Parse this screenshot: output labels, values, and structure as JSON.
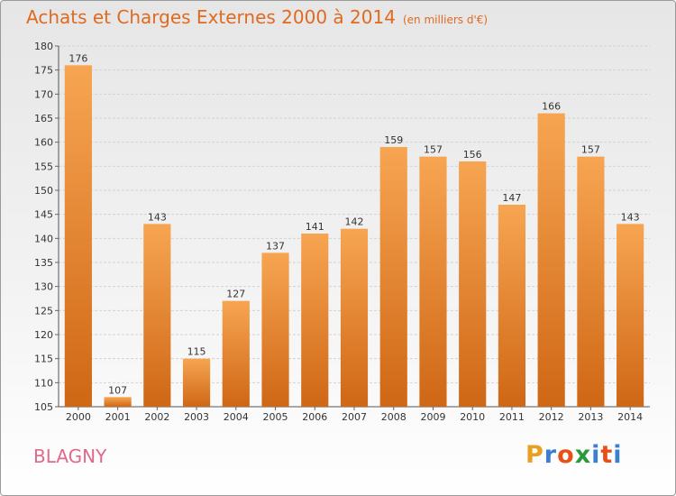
{
  "header": {
    "title": "Achats et Charges Externes 2000 à 2014",
    "unit": "(en milliers d'€)"
  },
  "footer": {
    "commune": "BLAGNY",
    "logo": [
      "P",
      "r",
      "o",
      "x",
      "i",
      "t",
      "i"
    ],
    "logo_colors": [
      "#e8a020",
      "#3a7fd0",
      "#e8501a",
      "#2a9a3a",
      "#3a7fd0",
      "#e8501a",
      "#3a7fd0"
    ]
  },
  "colors": {
    "bar_light": "#f7a552",
    "bar_dark": "#cf6715",
    "title": "#e06a20",
    "commune": "#e06a8a"
  },
  "chart_data": {
    "type": "bar",
    "title": "Achats et Charges Externes 2000 à 2014",
    "subtitle": "(en milliers d'€)",
    "categories": [
      "2000",
      "2001",
      "2002",
      "2003",
      "2004",
      "2005",
      "2006",
      "2007",
      "2008",
      "2009",
      "2010",
      "2011",
      "2012",
      "2013",
      "2014"
    ],
    "values": [
      176,
      107,
      143,
      115,
      127,
      137,
      141,
      142,
      159,
      157,
      156,
      147,
      166,
      157,
      143
    ],
    "ylim": [
      105,
      180
    ],
    "yticks": [
      105,
      110,
      115,
      120,
      125,
      130,
      135,
      140,
      145,
      150,
      155,
      160,
      165,
      170,
      175,
      180
    ],
    "grid": true,
    "legend": "none"
  }
}
